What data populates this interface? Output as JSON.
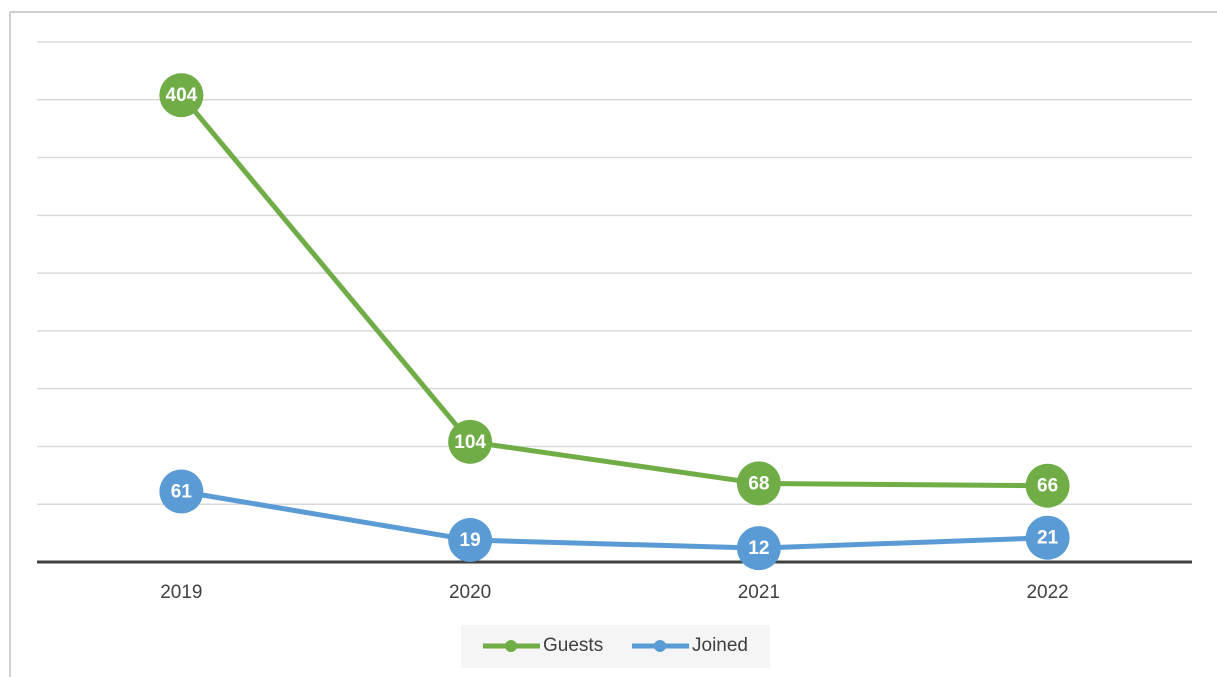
{
  "chart_data": {
    "type": "line",
    "categories": [
      "2019",
      "2020",
      "2021",
      "2022"
    ],
    "series": [
      {
        "name": "Guests",
        "color": "#70ad47",
        "values": [
          404,
          104,
          68,
          66
        ]
      },
      {
        "name": "Joined",
        "color": "#5b9bd5",
        "values": [
          61,
          19,
          12,
          21
        ]
      }
    ],
    "ylim": [
      0,
      450
    ],
    "yticks": [
      0,
      50,
      100,
      150,
      200,
      250,
      300,
      350,
      400,
      450
    ],
    "grid": true,
    "legend": "bottom"
  }
}
